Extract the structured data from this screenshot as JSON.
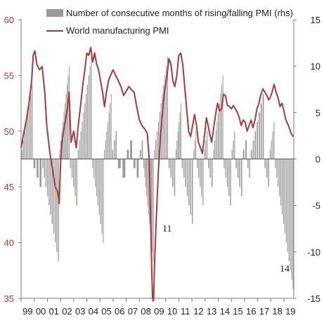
{
  "chart_data": {
    "type": "bar+line",
    "title": "",
    "legend": [
      {
        "label": "Number of consecutive months of rising/falling PMI (rhs)",
        "kind": "bar",
        "color": "#9b9b9b"
      },
      {
        "label": "World manufacturing PMI",
        "kind": "line",
        "color": "#a83a38"
      }
    ],
    "legend_position": "top-left",
    "grid": false,
    "x_axis": {
      "start_year": 1999,
      "end_year": 2019.75,
      "tick_labels": [
        "99",
        "00",
        "01",
        "02",
        "03",
        "04",
        "05",
        "06",
        "07",
        "08",
        "09",
        "10",
        "11",
        "12",
        "13",
        "14",
        "15",
        "16",
        "17",
        "18",
        "19"
      ]
    },
    "y_left": {
      "range": [
        35,
        60
      ],
      "ticks": [
        35,
        40,
        45,
        50,
        55,
        60
      ],
      "color": "#a83a38"
    },
    "y_right": {
      "range": [
        -15,
        15
      ],
      "ticks": [
        -15,
        -10,
        -5,
        0,
        5,
        10,
        15
      ]
    },
    "annotations": [
      {
        "text": "11",
        "x": 2009.1,
        "y_rhs": -7.5
      },
      {
        "text": "14",
        "x": 2019.0,
        "y_rhs": -11.8
      }
    ],
    "pmi_points": [
      [
        1999.0,
        48.5
      ],
      [
        1999.2,
        49.8
      ],
      [
        1999.4,
        51.0
      ],
      [
        1999.6,
        52.5
      ],
      [
        1999.8,
        54.5
      ],
      [
        1999.92,
        56.8
      ],
      [
        2000.05,
        57.2
      ],
      [
        2000.2,
        56.0
      ],
      [
        2000.4,
        55.5
      ],
      [
        2000.6,
        55.8
      ],
      [
        2000.8,
        53.5
      ],
      [
        2000.95,
        50.5
      ],
      [
        2001.2,
        48.0
      ],
      [
        2001.4,
        46.5
      ],
      [
        2001.6,
        45.0
      ],
      [
        2001.8,
        44.5
      ],
      [
        2001.9,
        43.5
      ],
      [
        2002.0,
        47.0
      ],
      [
        2002.1,
        49.0
      ],
      [
        2002.3,
        50.5
      ],
      [
        2002.5,
        51.8
      ],
      [
        2002.65,
        53.5
      ],
      [
        2002.8,
        49.0
      ],
      [
        2003.0,
        50.0
      ],
      [
        2003.2,
        48.5
      ],
      [
        2003.35,
        50.5
      ],
      [
        2003.5,
        52.0
      ],
      [
        2003.7,
        54.2
      ],
      [
        2003.85,
        55.5
      ],
      [
        2004.0,
        57.0
      ],
      [
        2004.15,
        56.8
      ],
      [
        2004.3,
        57.5
      ],
      [
        2004.45,
        56.2
      ],
      [
        2004.6,
        57.0
      ],
      [
        2004.75,
        56.0
      ],
      [
        2004.9,
        55.5
      ],
      [
        2005.05,
        54.5
      ],
      [
        2005.2,
        53.5
      ],
      [
        2005.35,
        52.2
      ],
      [
        2005.5,
        53.5
      ],
      [
        2005.65,
        54.5
      ],
      [
        2005.8,
        55.0
      ],
      [
        2006.0,
        55.5
      ],
      [
        2006.2,
        55.0
      ],
      [
        2006.4,
        54.5
      ],
      [
        2006.6,
        54.0
      ],
      [
        2006.8,
        53.2
      ],
      [
        2007.0,
        53.6
      ],
      [
        2007.2,
        54.0
      ],
      [
        2007.4,
        53.7
      ],
      [
        2007.6,
        53.5
      ],
      [
        2007.8,
        52.2
      ],
      [
        2008.0,
        51.0
      ],
      [
        2008.2,
        50.5
      ],
      [
        2008.4,
        50.2
      ],
      [
        2008.6,
        49.8
      ],
      [
        2008.75,
        47.5
      ],
      [
        2008.85,
        42.5
      ],
      [
        2008.93,
        38.0
      ],
      [
        2009.0,
        35.0
      ],
      [
        2009.08,
        34.8
      ],
      [
        2009.15,
        38.0
      ],
      [
        2009.3,
        42.5
      ],
      [
        2009.45,
        46.5
      ],
      [
        2009.6,
        49.5
      ],
      [
        2009.75,
        51.5
      ],
      [
        2009.9,
        53.5
      ],
      [
        2010.1,
        55.0
      ],
      [
        2010.25,
        56.5
      ],
      [
        2010.4,
        56.0
      ],
      [
        2010.55,
        54.5
      ],
      [
        2010.7,
        54.0
      ],
      [
        2010.85,
        55.0
      ],
      [
        2011.0,
        56.8
      ],
      [
        2011.15,
        57.0
      ],
      [
        2011.3,
        56.0
      ],
      [
        2011.45,
        54.0
      ],
      [
        2011.6,
        52.0
      ],
      [
        2011.75,
        50.0
      ],
      [
        2011.9,
        49.5
      ],
      [
        2012.05,
        50.5
      ],
      [
        2012.2,
        51.5
      ],
      [
        2012.35,
        50.5
      ],
      [
        2012.5,
        49.0
      ],
      [
        2012.65,
        48.5
      ],
      [
        2012.8,
        48.0
      ],
      [
        2012.95,
        49.5
      ],
      [
        2013.1,
        51.2
      ],
      [
        2013.2,
        50.7
      ],
      [
        2013.35,
        49.8
      ],
      [
        2013.5,
        49.0
      ],
      [
        2013.65,
        50.2
      ],
      [
        2013.8,
        51.5
      ],
      [
        2013.95,
        52.5
      ],
      [
        2014.1,
        51.8
      ],
      [
        2014.25,
        52.0
      ],
      [
        2014.4,
        53.3
      ],
      [
        2014.55,
        53.2
      ],
      [
        2014.7,
        52.3
      ],
      [
        2014.85,
        52.2
      ],
      [
        2015.0,
        52.0
      ],
      [
        2015.15,
        52.3
      ],
      [
        2015.3,
        52.0
      ],
      [
        2015.45,
        51.7
      ],
      [
        2015.6,
        51.2
      ],
      [
        2015.75,
        50.5
      ],
      [
        2015.9,
        51.0
      ],
      [
        2016.05,
        50.8
      ],
      [
        2016.2,
        50.0
      ],
      [
        2016.35,
        50.5
      ],
      [
        2016.5,
        51.0
      ],
      [
        2016.65,
        50.3
      ],
      [
        2016.8,
        51.0
      ],
      [
        2016.95,
        52.0
      ],
      [
        2017.1,
        52.5
      ],
      [
        2017.25,
        53.3
      ],
      [
        2017.4,
        53.8
      ],
      [
        2017.55,
        53.5
      ],
      [
        2017.7,
        53.2
      ],
      [
        2017.85,
        52.8
      ],
      [
        2017.95,
        53.0
      ],
      [
        2018.1,
        53.5
      ],
      [
        2018.25,
        54.2
      ],
      [
        2018.4,
        53.5
      ],
      [
        2018.55,
        53.0
      ],
      [
        2018.7,
        52.2
      ],
      [
        2018.85,
        52.5
      ],
      [
        2019.0,
        51.8
      ],
      [
        2019.15,
        51.0
      ],
      [
        2019.35,
        50.5
      ],
      [
        2019.55,
        49.8
      ],
      [
        2019.7,
        49.5
      ]
    ],
    "bar_runs": [
      [
        1999.0,
        1999.9,
        8
      ],
      [
        1999.9,
        2000.6,
        -3
      ],
      [
        2000.6,
        2001.9,
        -11
      ],
      [
        2001.9,
        2002.7,
        10
      ],
      [
        2002.7,
        2003.3,
        -5
      ],
      [
        2003.3,
        2004.4,
        11
      ],
      [
        2004.4,
        2005.3,
        -9
      ],
      [
        2005.3,
        2005.9,
        7
      ],
      [
        2005.9,
        2006.3,
        3
      ],
      [
        2006.3,
        2007.0,
        -2
      ],
      [
        2007.0,
        2007.5,
        2
      ],
      [
        2007.5,
        2008.0,
        -2
      ],
      [
        2008.0,
        2008.3,
        2
      ],
      [
        2008.3,
        2009.1,
        -11
      ],
      [
        2009.1,
        2010.2,
        11
      ],
      [
        2010.2,
        2010.75,
        -4
      ],
      [
        2010.75,
        2011.2,
        6
      ],
      [
        2011.2,
        2012.1,
        -7
      ],
      [
        2012.1,
        2012.35,
        3
      ],
      [
        2012.35,
        2012.9,
        -5
      ],
      [
        2012.9,
        2013.2,
        3
      ],
      [
        2013.2,
        2013.6,
        -3
      ],
      [
        2013.6,
        2014.4,
        9
      ],
      [
        2014.4,
        2015.0,
        -5
      ],
      [
        2015.0,
        2015.3,
        3
      ],
      [
        2015.3,
        2015.85,
        -4
      ],
      [
        2015.85,
        2016.2,
        2
      ],
      [
        2016.2,
        2016.45,
        -2
      ],
      [
        2016.45,
        2017.5,
        7
      ],
      [
        2017.5,
        2017.9,
        -3
      ],
      [
        2017.9,
        2018.3,
        4
      ],
      [
        2018.3,
        2019.75,
        -14
      ]
    ]
  }
}
